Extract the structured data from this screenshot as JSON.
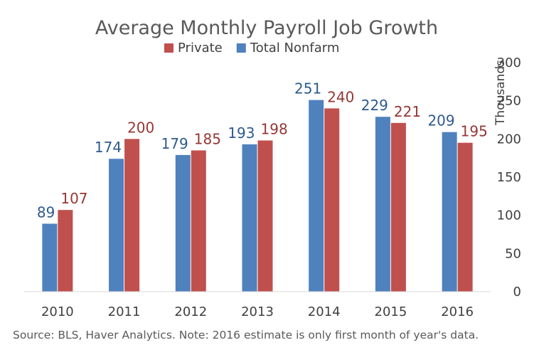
{
  "chart_data": {
    "type": "bar",
    "title": "Average Monthly Payroll Job Growth",
    "xlabel": "",
    "ylabel": "Thousands",
    "y_axis_side": "right",
    "ylim": [
      0,
      300
    ],
    "yticks": [
      0,
      50,
      100,
      150,
      200,
      250,
      300
    ],
    "categories": [
      "2010",
      "2011",
      "2012",
      "2013",
      "2014",
      "2015",
      "2016"
    ],
    "legend_position": "top",
    "legend_order": [
      "Private",
      "Total Nonfarm"
    ],
    "grid": false,
    "series": [
      {
        "name": "Total Nonfarm",
        "color": "#4f81bd",
        "label_color": "#2e5a8c",
        "values": [
          89,
          174,
          179,
          193,
          251,
          229,
          209
        ]
      },
      {
        "name": "Private",
        "color": "#c0504d",
        "label_color": "#953735",
        "values": [
          107,
          200,
          185,
          198,
          240,
          221,
          195
        ]
      }
    ],
    "source_note": "Source: BLS, Haver Analytics. Note: 2016 estimate is only first month of year's data."
  }
}
